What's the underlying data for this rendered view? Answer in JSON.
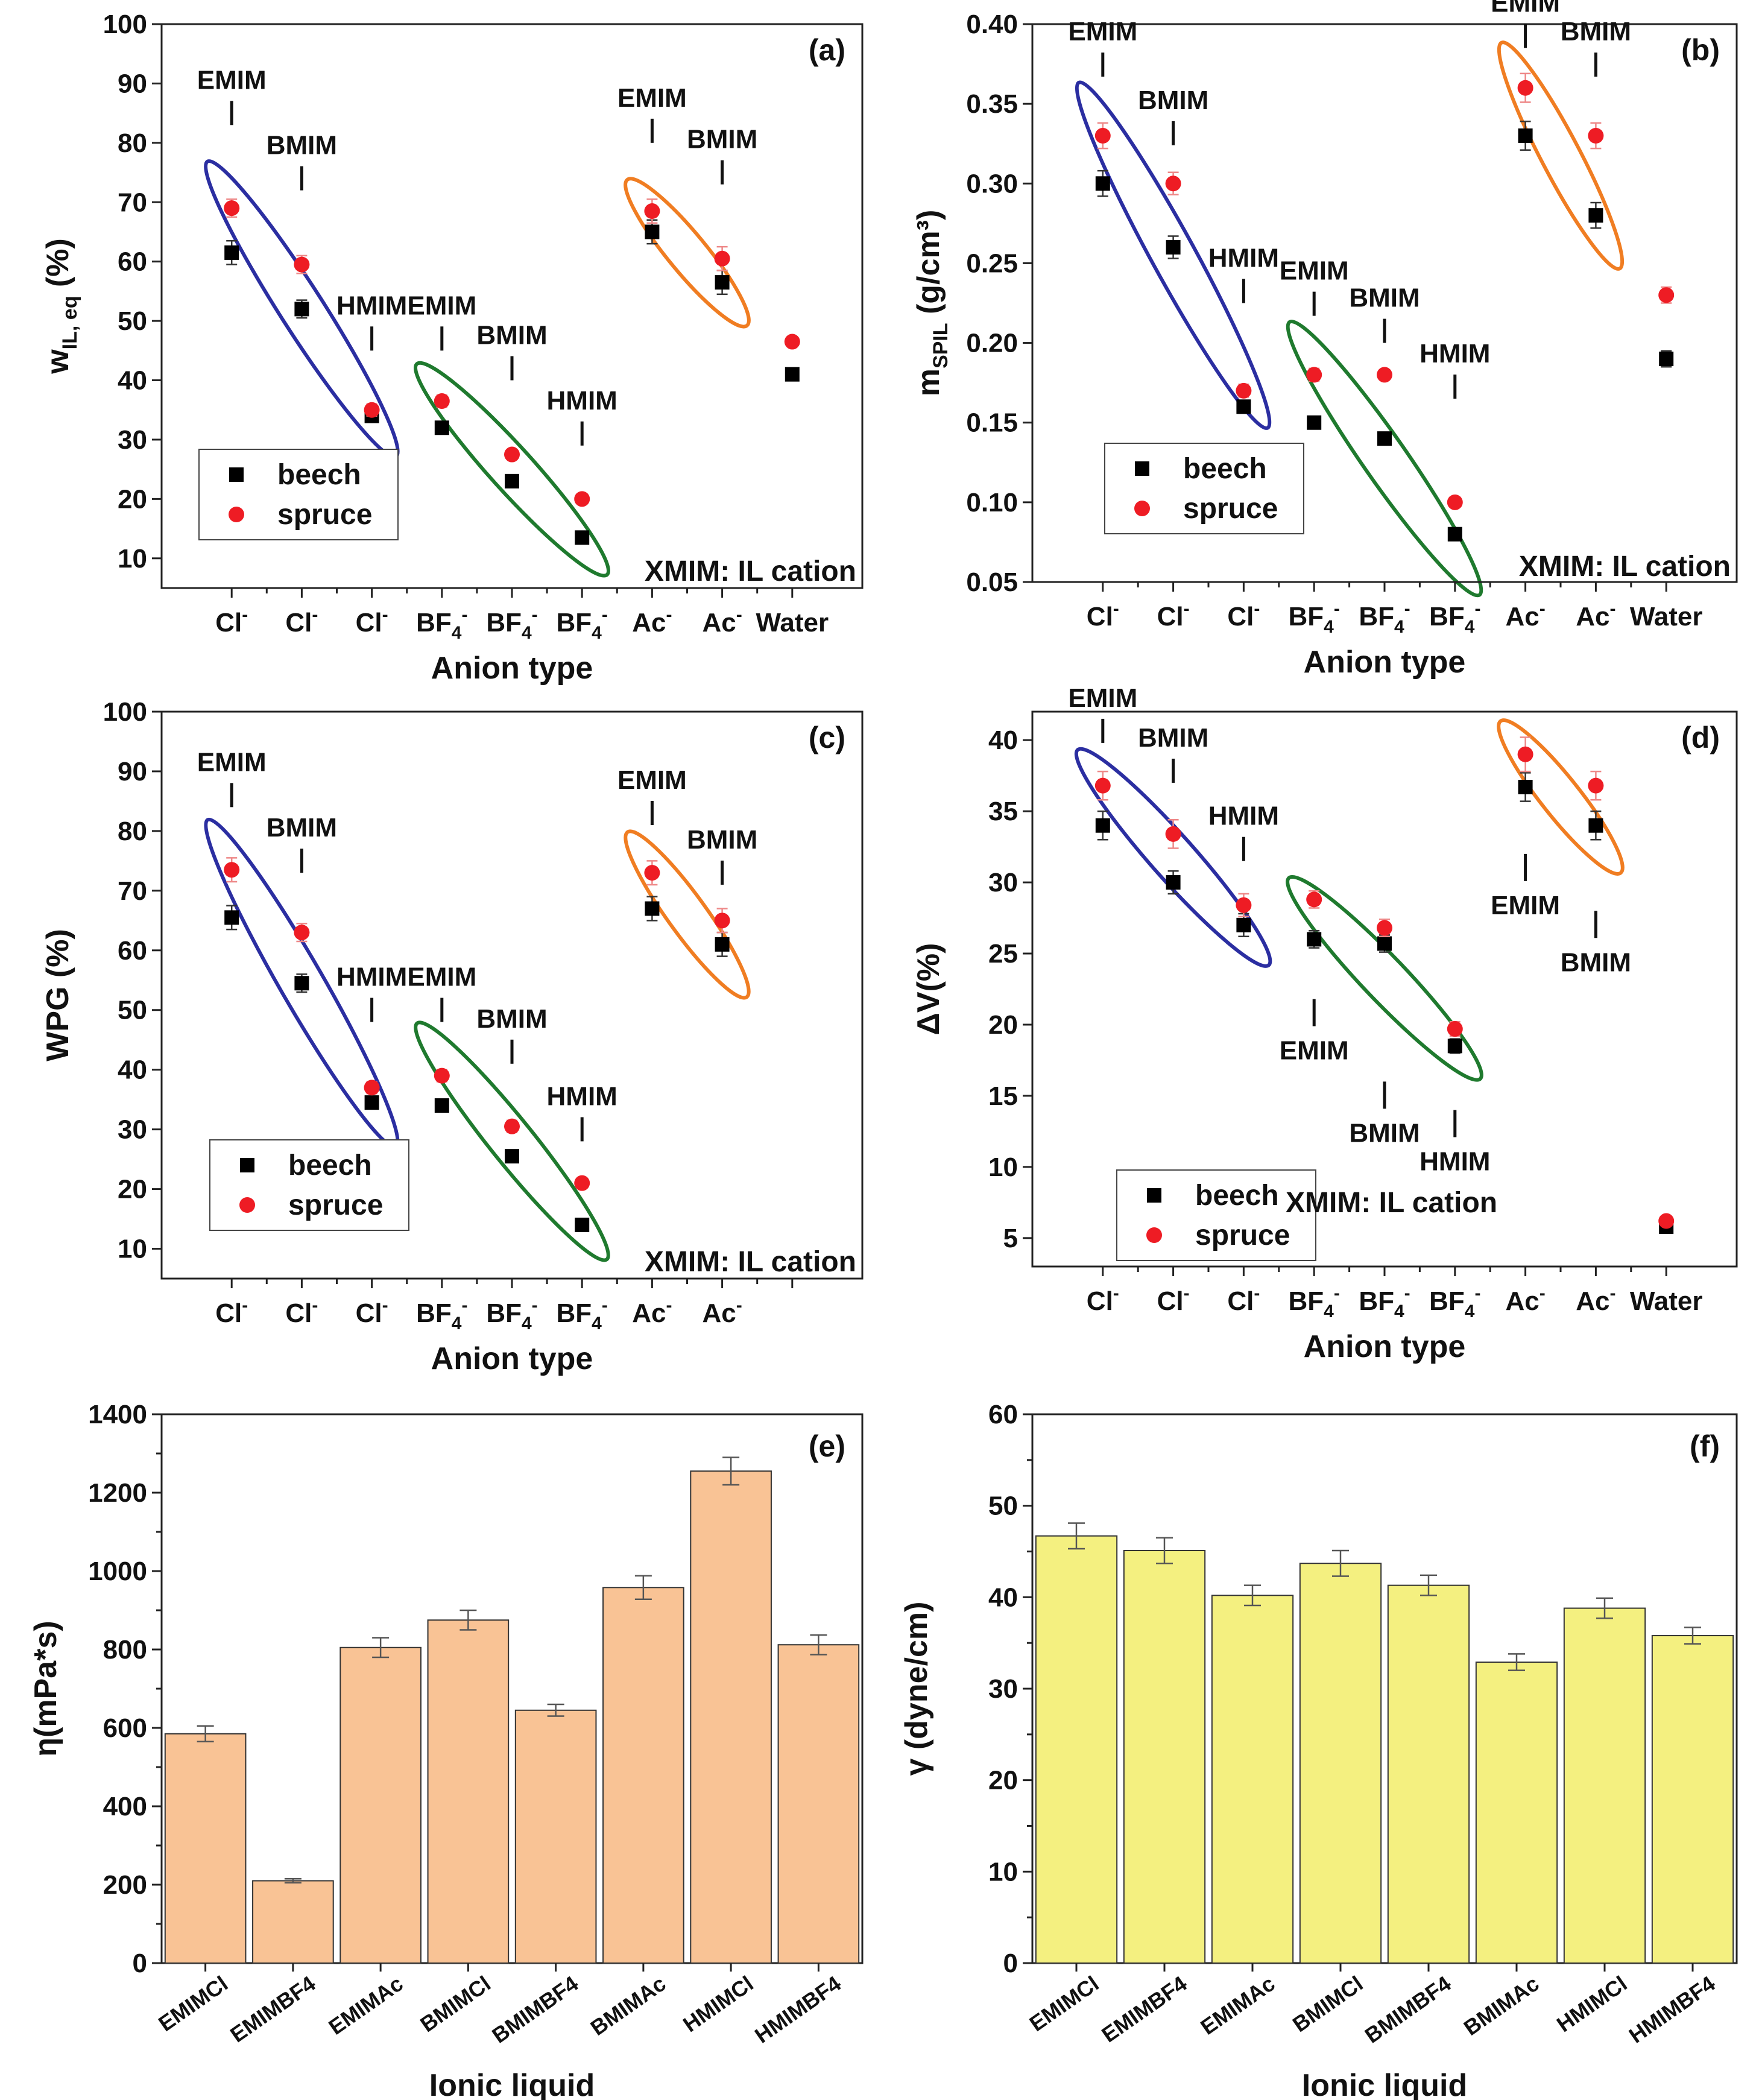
{
  "chart_data": [
    {
      "id": "a",
      "type": "scatter",
      "panel_label": "(a)",
      "ylabel_main": "w",
      "ylabel_sub": "IL, eq",
      "ylabel_tail": " (%)",
      "xlabel": "Anion type",
      "ylim": [
        5,
        100
      ],
      "yticks": [
        10,
        20,
        30,
        40,
        50,
        60,
        70,
        80,
        90,
        100
      ],
      "categories": [
        "Cl",
        "Cl",
        "Cl",
        "BF4",
        "BF4",
        "BF4",
        "Ac",
        "Ac",
        "Water"
      ],
      "series": [
        {
          "name": "beech",
          "values": [
            61.5,
            52,
            34,
            32,
            23,
            13.5,
            65,
            56.5,
            41
          ],
          "errors": [
            2,
            1.5,
            1,
            0.5,
            0.5,
            0.5,
            2,
            2,
            1
          ]
        },
        {
          "name": "spruce",
          "values": [
            69,
            59.5,
            35,
            36.5,
            27.5,
            20,
            68.5,
            60.5,
            46.5
          ],
          "errors": [
            1.5,
            1.5,
            1,
            1,
            0.5,
            0.5,
            2,
            2,
            0.5
          ]
        }
      ],
      "legend": [
        "beech",
        "spruce"
      ],
      "note": "XMIM: IL cation",
      "annotations": [
        {
          "text": "EMIM",
          "x": 1,
          "y": 83
        },
        {
          "text": "BMIM",
          "x": 2,
          "y": 72
        },
        {
          "text": "HMIM",
          "x": 3,
          "y": 45
        },
        {
          "text": "EMIM",
          "x": 4,
          "y": 45
        },
        {
          "text": "BMIM",
          "x": 5,
          "y": 40
        },
        {
          "text": "HMIM",
          "x": 6,
          "y": 29
        },
        {
          "text": "EMIM",
          "x": 7,
          "y": 80
        },
        {
          "text": "BMIM",
          "x": 8,
          "y": 73
        }
      ],
      "groups": [
        {
          "color": "#2b2ea1",
          "members": [
            1,
            2,
            3
          ],
          "ymin": 28,
          "ymax": 76
        },
        {
          "color": "#1f7a2e",
          "members": [
            4,
            5,
            6
          ],
          "ymin": 8,
          "ymax": 42
        },
        {
          "color": "#f07d22",
          "members": [
            7,
            8
          ],
          "ymin": 50,
          "ymax": 73
        }
      ]
    },
    {
      "id": "b",
      "type": "scatter",
      "panel_label": "(b)",
      "ylabel_main": "m",
      "ylabel_sub": "SPIL",
      "ylabel_tail": " (g/cm³)",
      "xlabel": "Anion type",
      "ylim": [
        0.05,
        0.4
      ],
      "yticks": [
        0.05,
        0.1,
        0.15,
        0.2,
        0.25,
        0.3,
        0.35,
        0.4
      ],
      "tick_decimals": 2,
      "categories": [
        "Cl",
        "Cl",
        "Cl",
        "BF4",
        "BF4",
        "BF4",
        "Ac",
        "Ac",
        "Water"
      ],
      "series": [
        {
          "name": "beech",
          "values": [
            0.3,
            0.26,
            0.16,
            0.15,
            0.14,
            0.08,
            0.33,
            0.28,
            0.19
          ],
          "errors": [
            0.008,
            0.007,
            0.004,
            0.003,
            0.003,
            0.003,
            0.009,
            0.008,
            0.005
          ]
        },
        {
          "name": "spruce",
          "values": [
            0.33,
            0.3,
            0.17,
            0.18,
            0.18,
            0.1,
            0.36,
            0.33,
            0.23
          ],
          "errors": [
            0.008,
            0.007,
            0.004,
            0.004,
            0.003,
            0.003,
            0.009,
            0.008,
            0.005
          ]
        }
      ],
      "legend": [
        "beech",
        "spruce"
      ],
      "note": "XMIM: IL cation",
      "annotations": [
        {
          "text": "EMIM",
          "x": 1,
          "y": 0.367
        },
        {
          "text": "BMIM",
          "x": 2,
          "y": 0.324
        },
        {
          "text": "HMIM",
          "x": 3,
          "y": 0.225
        },
        {
          "text": "EMIM",
          "x": 4,
          "y": 0.217
        },
        {
          "text": "BMIM",
          "x": 5,
          "y": 0.2
        },
        {
          "text": "HMIM",
          "x": 6,
          "y": 0.165
        },
        {
          "text": "EMIM",
          "x": 7,
          "y": 0.385
        },
        {
          "text": "BMIM",
          "x": 8,
          "y": 0.367
        }
      ],
      "groups": [
        {
          "color": "#2b2ea1",
          "members": [
            1,
            2,
            3
          ],
          "ymin": 0.15,
          "ymax": 0.36
        },
        {
          "color": "#1f7a2e",
          "members": [
            4,
            5,
            6
          ],
          "ymin": 0.045,
          "ymax": 0.21
        },
        {
          "color": "#f07d22",
          "members": [
            7,
            8
          ],
          "ymin": 0.25,
          "ymax": 0.385
        }
      ]
    },
    {
      "id": "c",
      "type": "scatter",
      "panel_label": "(c)",
      "ylabel_main": "WPG (%)",
      "ylabel_sub": "",
      "ylabel_tail": "",
      "xlabel": "Anion type",
      "ylim": [
        5,
        100
      ],
      "yticks": [
        10,
        20,
        30,
        40,
        50,
        60,
        70,
        80,
        90,
        100
      ],
      "categories": [
        "Cl",
        "Cl",
        "Cl",
        "BF4",
        "BF4",
        "BF4",
        "Ac",
        "Ac"
      ],
      "series": [
        {
          "name": "beech",
          "values": [
            65.5,
            54.5,
            34.5,
            34,
            25.5,
            14,
            67,
            61
          ],
          "errors": [
            2,
            1.5,
            1,
            1,
            1,
            0.5,
            2,
            2
          ]
        },
        {
          "name": "spruce",
          "values": [
            73.5,
            63,
            37,
            39,
            30.5,
            21,
            73,
            65
          ],
          "errors": [
            2,
            1.5,
            1,
            1,
            1,
            0.5,
            2,
            2
          ]
        }
      ],
      "legend": [
        "beech",
        "spruce"
      ],
      "note": "XMIM: IL cation",
      "annotations": [
        {
          "text": "EMIM",
          "x": 1,
          "y": 84
        },
        {
          "text": "BMIM",
          "x": 2,
          "y": 73
        },
        {
          "text": "HMIM",
          "x": 3,
          "y": 48
        },
        {
          "text": "EMIM",
          "x": 4,
          "y": 48
        },
        {
          "text": "BMIM",
          "x": 5,
          "y": 41
        },
        {
          "text": "HMIM",
          "x": 6,
          "y": 28
        },
        {
          "text": "EMIM",
          "x": 7,
          "y": 81
        },
        {
          "text": "BMIM",
          "x": 8,
          "y": 71
        }
      ],
      "groups": [
        {
          "color": "#2b2ea1",
          "members": [
            1,
            2,
            3
          ],
          "ymin": 28,
          "ymax": 81
        },
        {
          "color": "#1f7a2e",
          "members": [
            4,
            5,
            6
          ],
          "ymin": 9,
          "ymax": 47
        },
        {
          "color": "#f07d22",
          "members": [
            7,
            8
          ],
          "ymin": 53,
          "ymax": 79
        }
      ]
    },
    {
      "id": "d",
      "type": "scatter",
      "panel_label": "(d)",
      "ylabel_main": "ΔV(%)",
      "ylabel_sub": "",
      "ylabel_tail": "",
      "xlabel": "Anion type",
      "ylim": [
        3,
        42
      ],
      "yticks": [
        5,
        10,
        15,
        20,
        25,
        30,
        35,
        40
      ],
      "categories": [
        "Cl",
        "Cl",
        "Cl",
        "BF4",
        "BF4",
        "BF4",
        "Ac",
        "Ac",
        "Water"
      ],
      "series": [
        {
          "name": "beech",
          "values": [
            34,
            30,
            27,
            26,
            25.7,
            18.5,
            36.7,
            34,
            5.8
          ],
          "errors": [
            1,
            0.8,
            0.8,
            0.6,
            0.6,
            0.5,
            1,
            1,
            0.3
          ]
        },
        {
          "name": "spruce",
          "values": [
            36.8,
            33.4,
            28.4,
            28.8,
            26.8,
            19.7,
            39,
            36.8,
            6.2
          ],
          "errors": [
            1,
            1,
            0.8,
            0.6,
            0.6,
            0.5,
            1.2,
            1,
            0.3
          ]
        }
      ],
      "legend": [
        "beech",
        "spruce"
      ],
      "note": "XMIM: IL cation",
      "annotations": [
        {
          "text": "EMIM",
          "x": 1,
          "y": 39.8
        },
        {
          "text": "BMIM",
          "x": 2,
          "y": 37
        },
        {
          "text": "HMIM",
          "x": 3,
          "y": 31.5
        },
        {
          "text": "EMIM",
          "x": 4,
          "y": 21.8,
          "below": true
        },
        {
          "text": "BMIM",
          "x": 5,
          "y": 16,
          "below": true
        },
        {
          "text": "HMIM",
          "x": 6,
          "y": 14,
          "below": true
        },
        {
          "text": "EMIM",
          "x": 7,
          "y": 32,
          "below": true
        },
        {
          "text": "BMIM",
          "x": 8,
          "y": 28,
          "below": true
        }
      ],
      "groups": [
        {
          "color": "#2b2ea1",
          "members": [
            1,
            2,
            3
          ],
          "ymin": 24.5,
          "ymax": 39
        },
        {
          "color": "#1f7a2e",
          "members": [
            4,
            5,
            6
          ],
          "ymin": 16.5,
          "ymax": 30
        },
        {
          "color": "#f07d22",
          "members": [
            7,
            8
          ],
          "ymin": 31,
          "ymax": 41
        }
      ]
    },
    {
      "id": "e",
      "type": "bar",
      "panel_label": "(e)",
      "ylabel": "η(mPa*s)",
      "xlabel": "Ionic liquid",
      "ylim": [
        0,
        1400
      ],
      "yticks": [
        0,
        200,
        400,
        600,
        800,
        1000,
        1200,
        1400
      ],
      "categories": [
        "EMIMCl",
        "EMIMBF4",
        "EMIMAc",
        "BMIMCl",
        "BMIMBF4",
        "BMIMAc",
        "HMIMCl",
        "HMIMBF4"
      ],
      "values": [
        585,
        210,
        805,
        875,
        645,
        958,
        1255,
        812
      ],
      "errors": [
        20,
        5,
        25,
        25,
        15,
        30,
        35,
        25
      ],
      "bar_color": "#f9c395"
    },
    {
      "id": "f",
      "type": "bar",
      "panel_label": "(f)",
      "ylabel": "γ (dyne/cm)",
      "xlabel": "Ionic liquid",
      "ylim": [
        0,
        60
      ],
      "yticks": [
        0,
        10,
        20,
        30,
        40,
        50,
        60
      ],
      "categories": [
        "EMIMCl",
        "EMIMBF4",
        "EMIMAc",
        "BMIMCl",
        "BMIMBF4",
        "BMIMAc",
        "HMIMCl",
        "HMIMBF4"
      ],
      "values": [
        46.7,
        45.1,
        40.2,
        43.7,
        41.3,
        32.9,
        38.8,
        35.8
      ],
      "errors": [
        1.4,
        1.4,
        1.1,
        1.4,
        1.1,
        0.9,
        1.1,
        0.9
      ],
      "bar_color": "#f4f080"
    }
  ]
}
